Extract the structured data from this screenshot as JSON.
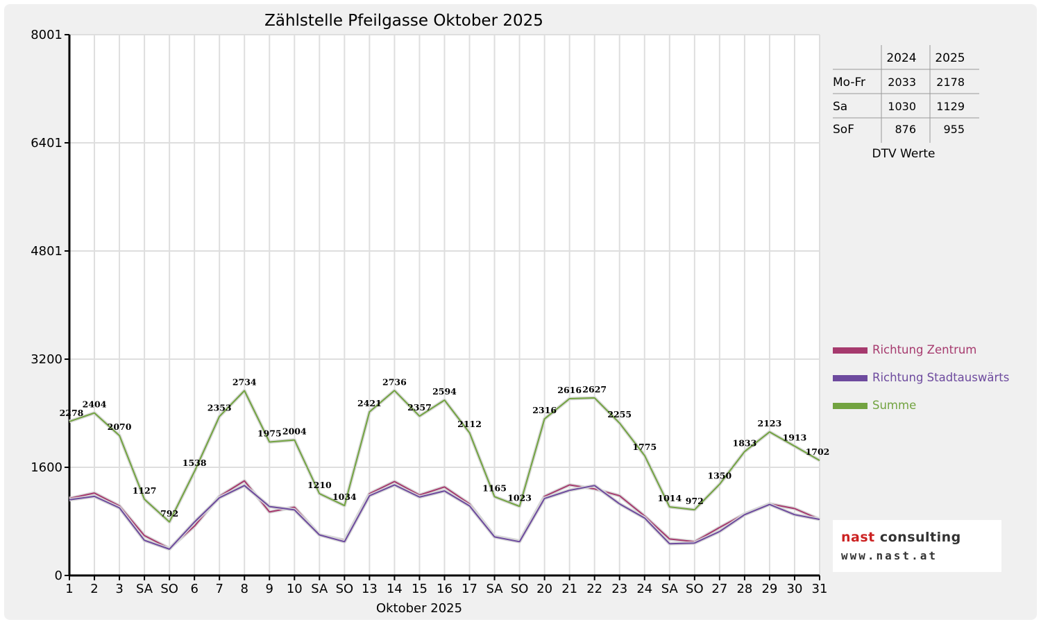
{
  "chart_data": {
    "type": "line",
    "title": "Zählstelle Pfeilgasse Oktober 2025",
    "xlabel": "Oktober 2025",
    "ylabel": "",
    "ylim": [
      0,
      8001
    ],
    "yticks": [
      "0",
      "1600",
      "3200",
      "4801",
      "6401",
      "8001"
    ],
    "grid": true,
    "legend_position": "right",
    "categories": [
      "1",
      "2",
      "3",
      "SA",
      "SO",
      "6",
      "7",
      "8",
      "9",
      "10",
      "SA",
      "SO",
      "13",
      "14",
      "15",
      "16",
      "17",
      "SA",
      "SO",
      "20",
      "21",
      "22",
      "23",
      "24",
      "SA",
      "SO",
      "27",
      "28",
      "29",
      "30",
      "31"
    ],
    "weekend_flags": [
      "",
      "",
      "",
      "sa",
      "so",
      "",
      "",
      "",
      "",
      "",
      "sa",
      "so",
      "",
      "",
      "",
      "",
      "",
      "sa",
      "so",
      "",
      "",
      "",
      "",
      "",
      "sa",
      "so",
      "",
      "",
      "",
      "",
      ""
    ],
    "series": [
      {
        "name": "Richtung Zentrum",
        "color": "#a63a6e",
        "values": [
          1140,
          1220,
          1030,
          590,
          400,
          730,
          1170,
          1400,
          940,
          1010,
          600,
          520,
          1210,
          1390,
          1190,
          1310,
          1060,
          580,
          510,
          1170,
          1340,
          1280,
          1180,
          880,
          540,
          500,
          710,
          910,
          1060,
          990,
          830
        ]
      },
      {
        "name": "Richtung Stadtauswärts",
        "color": "#6d4a9e",
        "values": [
          1120,
          1170,
          1000,
          520,
          390,
          790,
          1150,
          1330,
          1020,
          970,
          600,
          500,
          1180,
          1340,
          1160,
          1250,
          1030,
          570,
          500,
          1140,
          1260,
          1330,
          1060,
          850,
          470,
          480,
          650,
          900,
          1050,
          900,
          830
        ]
      },
      {
        "name": "Summe",
        "color": "#72a340",
        "values": [
          2278,
          2404,
          2070,
          1127,
          792,
          1538,
          2353,
          2734,
          1975,
          2004,
          1210,
          1034,
          2421,
          2736,
          2357,
          2594,
          2112,
          1165,
          1023,
          2316,
          2616,
          2627,
          2255,
          1775,
          1014,
          972,
          1350,
          1833,
          2123,
          1913,
          1702
        ]
      }
    ]
  },
  "dtv_table": {
    "columns": [
      "",
      "2024",
      "2025"
    ],
    "rows": [
      {
        "label": "Mo-Fr",
        "v2024": "2033",
        "v2025": "2178"
      },
      {
        "label": "Sa",
        "v2024": "1030",
        "v2025": "1129"
      },
      {
        "label": "SoF",
        "v2024": "876",
        "v2025": "955"
      }
    ],
    "caption": "DTV Werte"
  },
  "colors": {
    "weekend_sunday": "#ff0000",
    "grid": "#dedede",
    "frame_bg": "#f0f0f0"
  },
  "logo": {
    "line1_part1": "nast",
    "line1_part2": " consulting",
    "line2": "www.nast.at",
    "color_red": "#cc2222",
    "color_dark": "#333333"
  }
}
